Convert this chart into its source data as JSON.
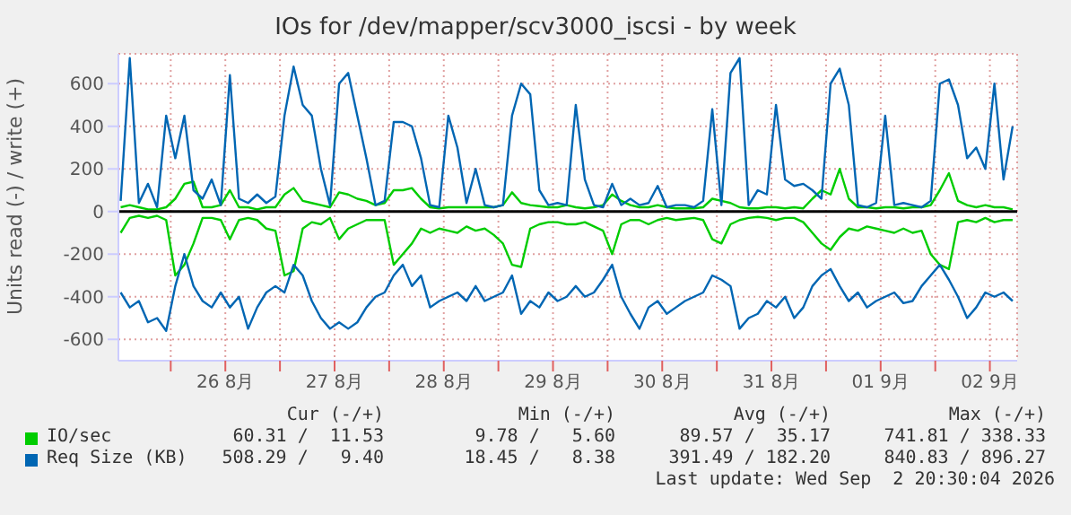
{
  "chart_data": {
    "type": "line",
    "title": "IOs for /dev/mapper/scv3000_iscsi - by week",
    "ylabel": "Units read (-) / write (+)",
    "x": [
      "2026-08-25T13:00",
      "2026-08-25T15:00",
      "2026-08-25T17:00",
      "2026-08-25T19:00",
      "2026-08-25T21:00",
      "2026-08-25T23:00",
      "2026-08-26T01:00",
      "2026-08-26T03:00",
      "2026-08-26T05:00",
      "2026-08-26T07:00",
      "2026-08-26T09:00",
      "2026-08-26T11:00",
      "2026-08-26T13:00",
      "2026-08-26T15:00",
      "2026-08-26T17:00",
      "2026-08-26T19:00",
      "2026-08-26T21:00",
      "2026-08-26T23:00",
      "2026-08-27T01:00",
      "2026-08-27T03:00",
      "2026-08-27T05:00",
      "2026-08-27T07:00",
      "2026-08-27T09:00",
      "2026-08-27T11:00",
      "2026-08-27T13:00",
      "2026-08-27T15:00",
      "2026-08-27T17:00",
      "2026-08-27T19:00",
      "2026-08-27T21:00",
      "2026-08-27T23:00",
      "2026-08-28T01:00",
      "2026-08-28T03:00",
      "2026-08-28T05:00",
      "2026-08-28T07:00",
      "2026-08-28T09:00",
      "2026-08-28T11:00",
      "2026-08-28T13:00",
      "2026-08-28T15:00",
      "2026-08-28T17:00",
      "2026-08-28T19:00",
      "2026-08-28T21:00",
      "2026-08-28T23:00",
      "2026-08-29T01:00",
      "2026-08-29T03:00",
      "2026-08-29T05:00",
      "2026-08-29T07:00",
      "2026-08-29T09:00",
      "2026-08-29T11:00",
      "2026-08-29T13:00",
      "2026-08-29T15:00",
      "2026-08-29T17:00",
      "2026-08-29T19:00",
      "2026-08-29T21:00",
      "2026-08-29T23:00",
      "2026-08-30T01:00",
      "2026-08-30T03:00",
      "2026-08-30T05:00",
      "2026-08-30T07:00",
      "2026-08-30T09:00",
      "2026-08-30T11:00",
      "2026-08-30T13:00",
      "2026-08-30T15:00",
      "2026-08-30T17:00",
      "2026-08-30T19:00",
      "2026-08-30T21:00",
      "2026-08-30T23:00",
      "2026-08-31T01:00",
      "2026-08-31T03:00",
      "2026-08-31T05:00",
      "2026-08-31T07:00",
      "2026-08-31T09:00",
      "2026-08-31T11:00",
      "2026-08-31T13:00",
      "2026-08-31T15:00",
      "2026-08-31T17:00",
      "2026-08-31T19:00",
      "2026-08-31T21:00",
      "2026-08-31T23:00",
      "2026-09-01T01:00",
      "2026-09-01T03:00",
      "2026-09-01T05:00",
      "2026-09-01T07:00",
      "2026-09-01T09:00",
      "2026-09-01T11:00",
      "2026-09-01T13:00",
      "2026-09-01T15:00",
      "2026-09-01T17:00",
      "2026-09-01T19:00",
      "2026-09-01T21:00",
      "2026-09-01T23:00",
      "2026-09-02T01:00",
      "2026-09-02T03:00",
      "2026-09-02T05:00",
      "2026-09-02T07:00",
      "2026-09-02T09:00",
      "2026-09-02T11:00",
      "2026-09-02T13:00",
      "2026-09-02T15:00",
      "2026-09-02T17:00"
    ],
    "series": [
      {
        "name": "IO/sec",
        "color": "#00cc00",
        "values": [
          20,
          30,
          20,
          10,
          10,
          20,
          60,
          130,
          140,
          20,
          20,
          30,
          100,
          20,
          20,
          10,
          20,
          20,
          80,
          110,
          50,
          40,
          30,
          20,
          90,
          80,
          60,
          50,
          30,
          40,
          100,
          100,
          110,
          60,
          20,
          15,
          20,
          20,
          20,
          20,
          20,
          20,
          30,
          90,
          40,
          30,
          25,
          20,
          20,
          30,
          20,
          15,
          20,
          30,
          80,
          50,
          30,
          20,
          20,
          30,
          20,
          15,
          15,
          15,
          20,
          60,
          50,
          40,
          20,
          15,
          15,
          20,
          20,
          15,
          20,
          15,
          60,
          100,
          80,
          200,
          60,
          20,
          20,
          15,
          20,
          20,
          15,
          20,
          20,
          30,
          100,
          180,
          50,
          30,
          20,
          30,
          20,
          20,
          10
        ]
      },
      {
        "name": "Req Size (KB)",
        "color": "#0066b3",
        "values": [
          50,
          720,
          40,
          130,
          20,
          450,
          250,
          450,
          100,
          60,
          150,
          30,
          640,
          60,
          40,
          80,
          40,
          70,
          450,
          680,
          500,
          450,
          200,
          30,
          600,
          650,
          450,
          250,
          30,
          50,
          420,
          420,
          400,
          250,
          30,
          20,
          450,
          300,
          40,
          200,
          30,
          20,
          30,
          450,
          600,
          550,
          100,
          30,
          40,
          30,
          500,
          150,
          30,
          20,
          130,
          30,
          60,
          30,
          40,
          120,
          20,
          30,
          30,
          20,
          50,
          480,
          30,
          650,
          720,
          30,
          100,
          80,
          500,
          150,
          120,
          130,
          100,
          60,
          600,
          670,
          500,
          30,
          20,
          40,
          450,
          30,
          40,
          30,
          20,
          50,
          600,
          620,
          500,
          250,
          300,
          200,
          600,
          150,
          400
        ]
      },
      {
        "color": "#00cc00",
        "values": [
          -100,
          -30,
          -20,
          -30,
          -20,
          -40,
          -300,
          -250,
          -150,
          -30,
          -30,
          -40,
          -130,
          -40,
          -30,
          -40,
          -80,
          -90,
          -300,
          -280,
          -80,
          -50,
          -60,
          -30,
          -130,
          -80,
          -60,
          -40,
          -40,
          -40,
          -250,
          -200,
          -150,
          -80,
          -100,
          -80,
          -90,
          -100,
          -70,
          -90,
          -80,
          -110,
          -150,
          -250,
          -260,
          -80,
          -60,
          -50,
          -50,
          -60,
          -60,
          -50,
          -70,
          -90,
          -200,
          -60,
          -40,
          -40,
          -60,
          -40,
          -30,
          -40,
          -35,
          -30,
          -40,
          -130,
          -150,
          -60,
          -40,
          -30,
          -25,
          -30,
          -40,
          -30,
          -30,
          -50,
          -100,
          -150,
          -180,
          -120,
          -80,
          -90,
          -70,
          -80,
          -90,
          -100,
          -80,
          -100,
          -90,
          -200,
          -250,
          -270,
          -50,
          -40,
          -50,
          -30,
          -50,
          -40,
          -40
        ]
      },
      {
        "color": "#0066b3",
        "values": [
          -380,
          -450,
          -420,
          -520,
          -500,
          -560,
          -350,
          -200,
          -350,
          -420,
          -450,
          -380,
          -450,
          -400,
          -550,
          -450,
          -380,
          -350,
          -380,
          -250,
          -300,
          -420,
          -500,
          -550,
          -520,
          -550,
          -520,
          -450,
          -400,
          -380,
          -300,
          -250,
          -350,
          -300,
          -450,
          -420,
          -400,
          -380,
          -420,
          -350,
          -420,
          -400,
          -380,
          -300,
          -480,
          -420,
          -450,
          -380,
          -420,
          -400,
          -350,
          -400,
          -380,
          -320,
          -250,
          -400,
          -480,
          -550,
          -450,
          -420,
          -480,
          -450,
          -420,
          -400,
          -380,
          -300,
          -320,
          -350,
          -550,
          -500,
          -480,
          -420,
          -450,
          -400,
          -500,
          -450,
          -350,
          -300,
          -270,
          -350,
          -420,
          -380,
          -450,
          -420,
          -400,
          -380,
          -430,
          -420,
          -350,
          -300,
          -250,
          -320,
          -400,
          -500,
          -450,
          -380,
          -400,
          -380,
          -420
        ]
      }
    ],
    "xlim": [
      "2026-08-25T12:30",
      "2026-09-02T18:00"
    ],
    "xticks": [
      {
        "value": "2026-08-26T00:00",
        "label": null
      },
      {
        "value": "2026-08-26T12:00",
        "label": "26 8月"
      },
      {
        "value": "2026-08-27T00:00",
        "label": null
      },
      {
        "value": "2026-08-27T12:00",
        "label": "27 8月"
      },
      {
        "value": "2026-08-28T00:00",
        "label": null
      },
      {
        "value": "2026-08-28T12:00",
        "label": "28 8月"
      },
      {
        "value": "2026-08-29T00:00",
        "label": null
      },
      {
        "value": "2026-08-29T12:00",
        "label": "29 8月"
      },
      {
        "value": "2026-08-30T00:00",
        "label": null
      },
      {
        "value": "2026-08-30T12:00",
        "label": "30 8月"
      },
      {
        "value": "2026-08-31T00:00",
        "label": null
      },
      {
        "value": "2026-08-31T12:00",
        "label": "31 8月"
      },
      {
        "value": "2026-09-01T00:00",
        "label": null
      },
      {
        "value": "2026-09-01T12:00",
        "label": "01 9月"
      },
      {
        "value": "2026-09-02T00:00",
        "label": null
      },
      {
        "value": "2026-09-02T12:00",
        "label": "02 9月"
      }
    ],
    "ylim": [
      -700,
      740
    ],
    "yticks": [
      -600,
      -400,
      -200,
      0,
      200,
      400,
      600
    ],
    "ref_lines": [
      {
        "axis": "y",
        "value": 0,
        "color": "#000000"
      }
    ],
    "grid": true,
    "legend": "bottom",
    "marker": "none",
    "line_style": "solid",
    "annotations": [
      "Cur (-/+)",
      "Min (-/+)",
      "Avg (-/+)",
      "Max (-/+)",
      "60.31 /  11.53",
      "9.78 /   5.60",
      "89.57 /  35.17",
      "741.81 / 338.33",
      "508.29 /   9.40",
      "18.45 /   8.38",
      "391.49 / 182.20",
      "840.83 / 896.27",
      "Last update: Wed Sep  2 20:30:04 2026"
    ]
  }
}
